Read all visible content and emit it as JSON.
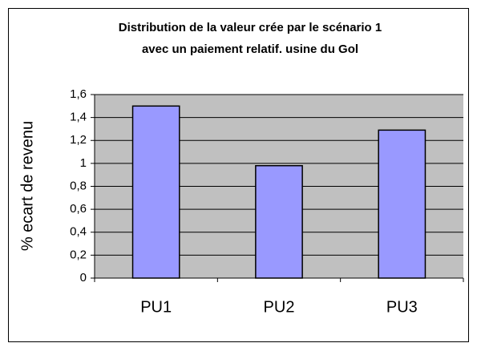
{
  "chart_data": {
    "type": "bar",
    "title": [
      "Distribution de la valeur crée par le scénario 1",
      "avec un paiement relatif. usine du Gol"
    ],
    "y_label": "% ecart de revenu",
    "categories": [
      "PU1",
      "PU2",
      "PU3"
    ],
    "values": [
      1.5,
      0.98,
      1.29
    ],
    "color": "#9999ff",
    "ylim": [
      0,
      1.6
    ],
    "yticks": [
      0,
      {
        "value": 0.2,
        "label": "0,2"
      },
      {
        "value": 0.4,
        "label": "0,4"
      },
      {
        "value": 0.6,
        "label": "0,6"
      },
      {
        "value": 0.8,
        "label": "0,8"
      },
      1,
      {
        "value": 1.2,
        "label": "1,2"
      },
      {
        "value": 1.4,
        "label": "1,4"
      },
      {
        "value": 1.6,
        "label": "1,6"
      }
    ],
    "grid": true
  }
}
